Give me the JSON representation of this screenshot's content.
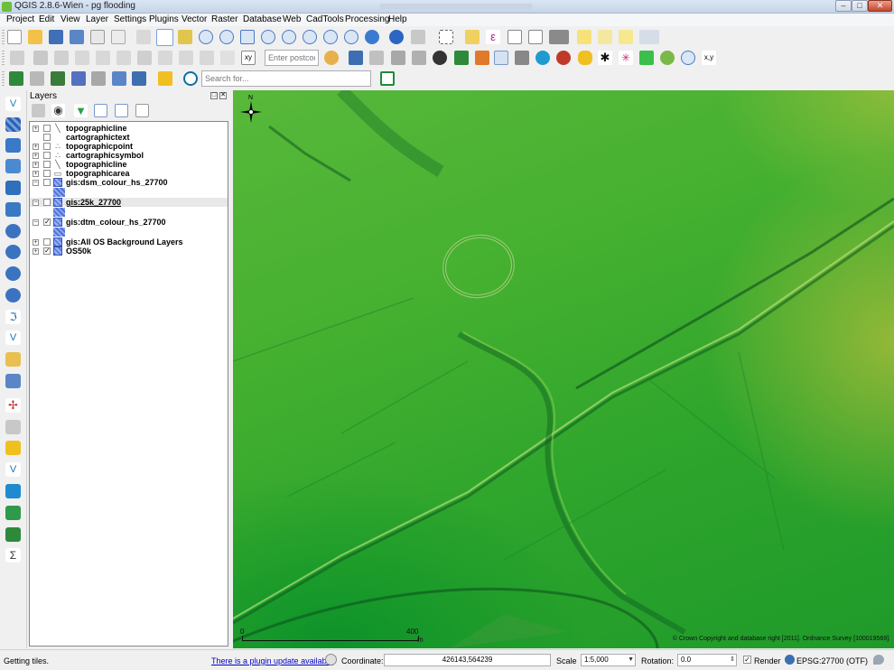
{
  "window": {
    "title": "QGIS 2.8.6-Wien - pg flooding",
    "minimize": "–",
    "maximize": "□",
    "close": "✕"
  },
  "menu": [
    "Project",
    "Edit",
    "View",
    "Layer",
    "Settings",
    "Plugins",
    "Vector",
    "Raster",
    "Database",
    "Web",
    "CadTools",
    "Processing",
    "Help"
  ],
  "toolbar": {
    "postcode_placeholder": "Enter postcod...",
    "search_placeholder": "Search for..."
  },
  "layers_panel": {
    "title": "Layers",
    "float_btn": "□",
    "close_btn": "✕",
    "layers": [
      {
        "name": "topographicline",
        "symbol": "line-icon",
        "sym": "╲",
        "checked": false,
        "expanded": false
      },
      {
        "name": "cartographictext",
        "symbol": "",
        "sym": "",
        "checked": false,
        "expanded": false
      },
      {
        "name": "topographicpoint",
        "symbol": "point-icon",
        "sym": "∴",
        "checked": false,
        "expanded": false
      },
      {
        "name": "cartographicsymbol",
        "symbol": "point-icon",
        "sym": "∴",
        "checked": false,
        "expanded": false
      },
      {
        "name": "topographicline",
        "symbol": "line-icon",
        "sym": "╲",
        "checked": false,
        "expanded": false
      },
      {
        "name": "topographicarea",
        "symbol": "polygon-icon",
        "sym": "▭",
        "checked": false,
        "expanded": false
      },
      {
        "name": "gis:dsm_colour_hs_27700",
        "symbol": "raster-icon",
        "sym": "",
        "checked": false,
        "expanded": true
      },
      {
        "name": "gis:25k_27700",
        "symbol": "raster-icon",
        "sym": "",
        "checked": false,
        "expanded": true,
        "selected": true
      },
      {
        "name": "gis:dtm_colour_hs_27700",
        "symbol": "raster-icon",
        "sym": "",
        "checked": true,
        "expanded": true
      },
      {
        "name": "gis:All OS Background Layers",
        "symbol": "raster-icon",
        "sym": "",
        "checked": false,
        "expanded": false
      },
      {
        "name": "OS50k",
        "symbol": "raster-icon",
        "sym": "",
        "checked": true,
        "expanded": false
      }
    ]
  },
  "map": {
    "north_label": "N",
    "scale_zero": "0",
    "scale_end": "400",
    "scale_unit": "m",
    "copyright": "© Crown Copyright and database right [2011]. Ordnance Survey [100019569]."
  },
  "status": {
    "message": "Getting tiles.",
    "plugin_update": "There is a plugin update available",
    "coordinate_label": "Coordinate:",
    "coordinate_value": "426143,564239",
    "scale_label": "Scale",
    "scale_value": "1:5,000",
    "rotation_label": "Rotation:",
    "rotation_value": "0.0",
    "render_label": "Render",
    "render_checked": true,
    "crs": "EPSG:27700 (OTF)"
  },
  "colors": {
    "map_high": "#c3c34a",
    "map_mid": "#45b030",
    "map_low": "#0f8f2f",
    "link": "#0000cc"
  }
}
